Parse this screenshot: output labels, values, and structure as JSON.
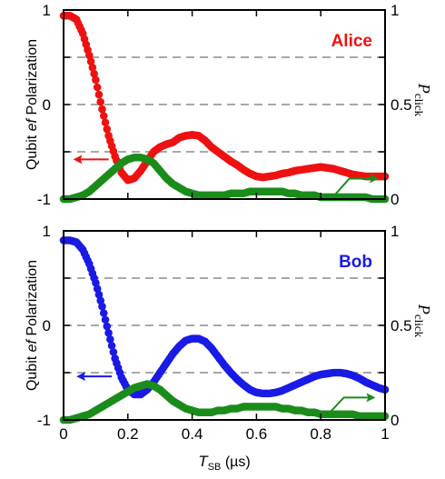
{
  "colors": {
    "alice": "#ee1111",
    "bob": "#1a1ae6",
    "green": "#1a8c1a",
    "grid": "#8c8c8c"
  },
  "labels": {
    "ylabel_prefix": "Qubit ",
    "ylabel_ef": "ef",
    "ylabel_suffix": " Polarization",
    "pclick_main": "P",
    "pclick_sub": "click",
    "xlabel_main": "T",
    "xlabel_sub": "SB",
    "xlabel_unit": " (µs)"
  },
  "chart_data": [
    {
      "type": "scatter",
      "title": "Alice",
      "xlim": [
        0,
        1
      ],
      "ylim_left": [
        -1,
        1
      ],
      "ylim_right": [
        0,
        1
      ],
      "x_ticks": [
        "0",
        "0.2",
        "0.4",
        "0.6",
        "0.8",
        "1"
      ],
      "y_ticks_left": [
        "1",
        "0",
        "-1"
      ],
      "y_ticks_right": [
        "1",
        "0.5",
        "0"
      ],
      "dashed_gridlines_left_axis": [
        0.5,
        0,
        -0.5
      ],
      "series": [
        {
          "axis": "left",
          "color_key": "alice",
          "points": [
            [
              0,
              0.94
            ],
            [
              0.02,
              0.94
            ],
            [
              0.04,
              0.9
            ],
            [
              0.06,
              0.75
            ],
            [
              0.08,
              0.52
            ],
            [
              0.1,
              0.26
            ],
            [
              0.12,
              -0.05
            ],
            [
              0.14,
              -0.33
            ],
            [
              0.16,
              -0.55
            ],
            [
              0.18,
              -0.72
            ],
            [
              0.2,
              -0.8
            ],
            [
              0.22,
              -0.78
            ],
            [
              0.24,
              -0.7
            ],
            [
              0.26,
              -0.6
            ],
            [
              0.28,
              -0.5
            ],
            [
              0.3,
              -0.45
            ],
            [
              0.32,
              -0.42
            ],
            [
              0.34,
              -0.4
            ],
            [
              0.36,
              -0.35
            ],
            [
              0.38,
              -0.33
            ],
            [
              0.4,
              -0.32
            ],
            [
              0.42,
              -0.33
            ],
            [
              0.44,
              -0.38
            ],
            [
              0.46,
              -0.45
            ],
            [
              0.48,
              -0.5
            ],
            [
              0.5,
              -0.55
            ],
            [
              0.52,
              -0.6
            ],
            [
              0.54,
              -0.64
            ],
            [
              0.56,
              -0.69
            ],
            [
              0.58,
              -0.73
            ],
            [
              0.6,
              -0.76
            ],
            [
              0.62,
              -0.77
            ],
            [
              0.64,
              -0.76
            ],
            [
              0.66,
              -0.75
            ],
            [
              0.68,
              -0.73
            ],
            [
              0.7,
              -0.72
            ],
            [
              0.72,
              -0.7
            ],
            [
              0.74,
              -0.69
            ],
            [
              0.76,
              -0.68
            ],
            [
              0.78,
              -0.67
            ],
            [
              0.8,
              -0.66
            ],
            [
              0.82,
              -0.67
            ],
            [
              0.84,
              -0.68
            ],
            [
              0.86,
              -0.7
            ],
            [
              0.88,
              -0.72
            ],
            [
              0.9,
              -0.74
            ],
            [
              0.92,
              -0.75
            ],
            [
              0.94,
              -0.76
            ],
            [
              0.96,
              -0.76
            ],
            [
              0.98,
              -0.76
            ],
            [
              1,
              -0.76
            ]
          ]
        },
        {
          "axis": "right",
          "color_key": "green",
          "points": [
            [
              0,
              0.0
            ],
            [
              0.02,
              0.0
            ],
            [
              0.04,
              0.01
            ],
            [
              0.06,
              0.02
            ],
            [
              0.08,
              0.04
            ],
            [
              0.1,
              0.07
            ],
            [
              0.12,
              0.1
            ],
            [
              0.14,
              0.13
            ],
            [
              0.16,
              0.16
            ],
            [
              0.18,
              0.19
            ],
            [
              0.2,
              0.21
            ],
            [
              0.22,
              0.22
            ],
            [
              0.24,
              0.22
            ],
            [
              0.26,
              0.21
            ],
            [
              0.28,
              0.19
            ],
            [
              0.3,
              0.15
            ],
            [
              0.32,
              0.11
            ],
            [
              0.34,
              0.08
            ],
            [
              0.36,
              0.06
            ],
            [
              0.38,
              0.04
            ],
            [
              0.4,
              0.03
            ],
            [
              0.42,
              0.02
            ],
            [
              0.44,
              0.02
            ],
            [
              0.46,
              0.02
            ],
            [
              0.48,
              0.02
            ],
            [
              0.5,
              0.02
            ],
            [
              0.52,
              0.03
            ],
            [
              0.54,
              0.03
            ],
            [
              0.56,
              0.03
            ],
            [
              0.58,
              0.04
            ],
            [
              0.6,
              0.04
            ],
            [
              0.62,
              0.04
            ],
            [
              0.64,
              0.04
            ],
            [
              0.66,
              0.04
            ],
            [
              0.68,
              0.04
            ],
            [
              0.7,
              0.03
            ],
            [
              0.72,
              0.03
            ],
            [
              0.74,
              0.02
            ],
            [
              0.76,
              0.02
            ],
            [
              0.78,
              0.02
            ],
            [
              0.8,
              0.01
            ],
            [
              0.82,
              0.01
            ],
            [
              0.84,
              0.01
            ],
            [
              0.86,
              0.01
            ],
            [
              0.88,
              0.01
            ],
            [
              0.9,
              0.01
            ],
            [
              0.92,
              0.01
            ],
            [
              0.94,
              0.01
            ],
            [
              0.96,
              0.0
            ],
            [
              0.98,
              0.0
            ],
            [
              1,
              0.0
            ]
          ]
        }
      ],
      "arrows": [
        {
          "color_key": "alice",
          "direction": "left",
          "from": [
            0.14,
            -0.58
          ],
          "to": [
            0.03,
            -0.58
          ]
        },
        {
          "color_key": "green",
          "direction": "right",
          "from": [
            0.85,
            -0.86
          ],
          "to": [
            0.98,
            -0.86
          ]
        }
      ]
    },
    {
      "type": "scatter",
      "title": "Bob",
      "xlim": [
        0,
        1
      ],
      "ylim_left": [
        -1,
        1
      ],
      "ylim_right": [
        0,
        1
      ],
      "x_ticks": [
        "0",
        "0.2",
        "0.4",
        "0.6",
        "0.8",
        "1"
      ],
      "y_ticks_left": [
        "1",
        "0",
        "-1"
      ],
      "y_ticks_right": [
        "1",
        "0.5",
        "0"
      ],
      "dashed_gridlines_left_axis": [
        0.5,
        0,
        -0.5
      ],
      "series": [
        {
          "axis": "left",
          "color_key": "bob",
          "points": [
            [
              0,
              0.9
            ],
            [
              0.02,
              0.9
            ],
            [
              0.04,
              0.88
            ],
            [
              0.06,
              0.8
            ],
            [
              0.08,
              0.65
            ],
            [
              0.1,
              0.45
            ],
            [
              0.12,
              0.2
            ],
            [
              0.14,
              -0.08
            ],
            [
              0.16,
              -0.35
            ],
            [
              0.18,
              -0.55
            ],
            [
              0.2,
              -0.68
            ],
            [
              0.22,
              -0.73
            ],
            [
              0.24,
              -0.73
            ],
            [
              0.26,
              -0.68
            ],
            [
              0.28,
              -0.6
            ],
            [
              0.3,
              -0.5
            ],
            [
              0.32,
              -0.4
            ],
            [
              0.34,
              -0.3
            ],
            [
              0.36,
              -0.22
            ],
            [
              0.38,
              -0.16
            ],
            [
              0.4,
              -0.14
            ],
            [
              0.42,
              -0.14
            ],
            [
              0.44,
              -0.17
            ],
            [
              0.46,
              -0.24
            ],
            [
              0.48,
              -0.33
            ],
            [
              0.5,
              -0.42
            ],
            [
              0.52,
              -0.5
            ],
            [
              0.54,
              -0.57
            ],
            [
              0.56,
              -0.63
            ],
            [
              0.58,
              -0.68
            ],
            [
              0.6,
              -0.71
            ],
            [
              0.62,
              -0.72
            ],
            [
              0.64,
              -0.72
            ],
            [
              0.66,
              -0.71
            ],
            [
              0.68,
              -0.69
            ],
            [
              0.7,
              -0.66
            ],
            [
              0.72,
              -0.63
            ],
            [
              0.74,
              -0.6
            ],
            [
              0.76,
              -0.57
            ],
            [
              0.78,
              -0.54
            ],
            [
              0.8,
              -0.52
            ],
            [
              0.82,
              -0.51
            ],
            [
              0.84,
              -0.5
            ],
            [
              0.86,
              -0.5
            ],
            [
              0.88,
              -0.51
            ],
            [
              0.9,
              -0.53
            ],
            [
              0.92,
              -0.56
            ],
            [
              0.94,
              -0.6
            ],
            [
              0.96,
              -0.63
            ],
            [
              0.98,
              -0.66
            ],
            [
              1,
              -0.68
            ]
          ]
        },
        {
          "axis": "right",
          "color_key": "green",
          "points": [
            [
              0,
              0.0
            ],
            [
              0.02,
              0.0
            ],
            [
              0.04,
              0.01
            ],
            [
              0.06,
              0.02
            ],
            [
              0.08,
              0.03
            ],
            [
              0.1,
              0.05
            ],
            [
              0.12,
              0.07
            ],
            [
              0.14,
              0.09
            ],
            [
              0.16,
              0.11
            ],
            [
              0.18,
              0.13
            ],
            [
              0.2,
              0.15
            ],
            [
              0.22,
              0.17
            ],
            [
              0.24,
              0.18
            ],
            [
              0.26,
              0.19
            ],
            [
              0.28,
              0.18
            ],
            [
              0.3,
              0.16
            ],
            [
              0.32,
              0.13
            ],
            [
              0.34,
              0.1
            ],
            [
              0.36,
              0.08
            ],
            [
              0.38,
              0.06
            ],
            [
              0.4,
              0.05
            ],
            [
              0.42,
              0.04
            ],
            [
              0.44,
              0.04
            ],
            [
              0.46,
              0.04
            ],
            [
              0.48,
              0.05
            ],
            [
              0.5,
              0.05
            ],
            [
              0.52,
              0.06
            ],
            [
              0.54,
              0.06
            ],
            [
              0.56,
              0.07
            ],
            [
              0.58,
              0.07
            ],
            [
              0.6,
              0.07
            ],
            [
              0.62,
              0.07
            ],
            [
              0.64,
              0.07
            ],
            [
              0.66,
              0.07
            ],
            [
              0.68,
              0.06
            ],
            [
              0.7,
              0.06
            ],
            [
              0.72,
              0.05
            ],
            [
              0.74,
              0.05
            ],
            [
              0.76,
              0.04
            ],
            [
              0.78,
              0.04
            ],
            [
              0.8,
              0.03
            ],
            [
              0.82,
              0.03
            ],
            [
              0.84,
              0.03
            ],
            [
              0.86,
              0.03
            ],
            [
              0.88,
              0.03
            ],
            [
              0.9,
              0.03
            ],
            [
              0.92,
              0.02
            ],
            [
              0.94,
              0.02
            ],
            [
              0.96,
              0.02
            ],
            [
              0.98,
              0.02
            ],
            [
              1,
              0.02
            ]
          ]
        }
      ],
      "arrows": [
        {
          "color_key": "bob",
          "direction": "left",
          "from": [
            0.15,
            -0.54
          ],
          "to": [
            0.04,
            -0.54
          ]
        },
        {
          "color_key": "green",
          "direction": "right",
          "from": [
            0.83,
            -0.84
          ],
          "to": [
            0.97,
            -0.84
          ]
        }
      ]
    }
  ]
}
